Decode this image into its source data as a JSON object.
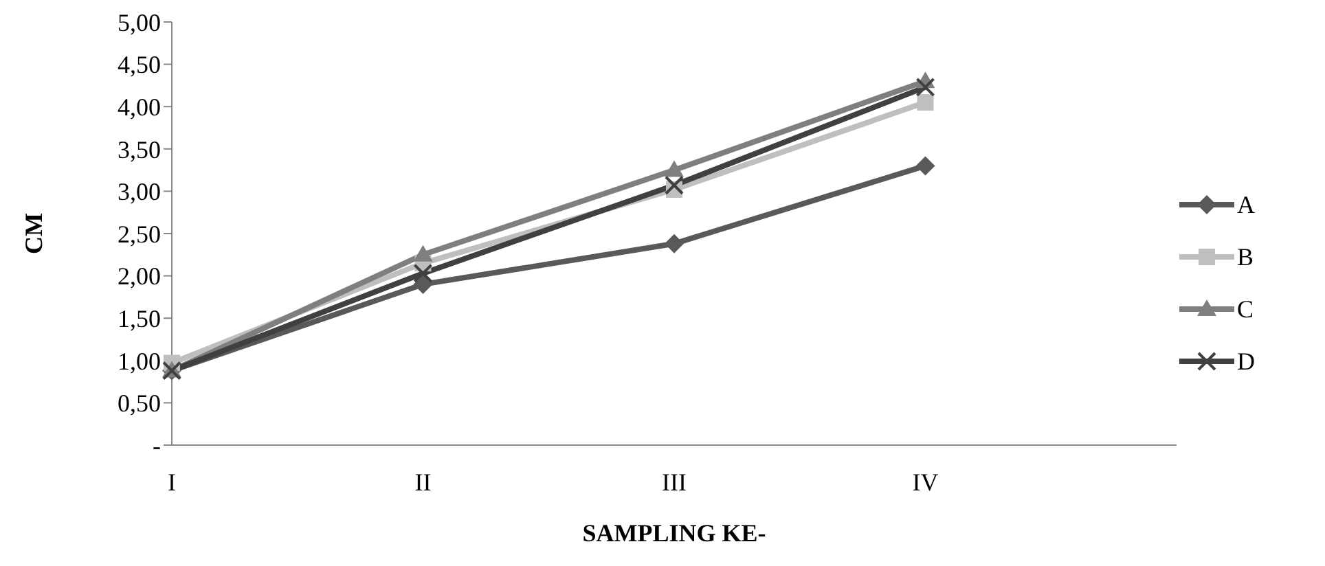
{
  "chart_data": {
    "type": "line",
    "xlabel": "SAMPLING KE-",
    "ylabel": "CM",
    "categories": [
      "I",
      "II",
      "III",
      "IV",
      null
    ],
    "series": [
      {
        "name": "A",
        "color": "#595959",
        "marker": "diamond",
        "values": [
          0.88,
          1.9,
          2.38,
          3.3,
          null
        ]
      },
      {
        "name": "B",
        "color": "#bfbfbf",
        "marker": "square",
        "values": [
          0.97,
          2.15,
          3.02,
          4.05,
          null
        ]
      },
      {
        "name": "C",
        "color": "#7f7f7f",
        "marker": "triangle",
        "values": [
          0.88,
          2.25,
          3.25,
          4.3,
          null
        ]
      },
      {
        "name": "D",
        "color": "#404040",
        "marker": "cross",
        "values": [
          0.88,
          2.03,
          3.07,
          4.23,
          null
        ]
      }
    ],
    "ylim": [
      0,
      5
    ],
    "yticks": [
      {
        "value": 0,
        "label": "-"
      },
      {
        "value": 0.5,
        "label": "0,50"
      },
      {
        "value": 1,
        "label": "1,00"
      },
      {
        "value": 1.5,
        "label": "1,50"
      },
      {
        "value": 2,
        "label": "2,00"
      },
      {
        "value": 2.5,
        "label": "2,50"
      },
      {
        "value": 3,
        "label": "3,00"
      },
      {
        "value": 3.5,
        "label": "3,50"
      },
      {
        "value": 4,
        "label": "4,00"
      },
      {
        "value": 4.5,
        "label": "4,50"
      },
      {
        "value": 5,
        "label": "5,00"
      }
    ],
    "grid": false,
    "legend": "right",
    "line_style": "solid"
  }
}
